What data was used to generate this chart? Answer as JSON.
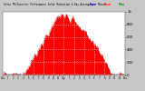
{
  "title": "Solar PV/Inverter Performance Solar Radiation & Day Average per Minute",
  "bg_color": "#c8c8c8",
  "plot_bg_color": "#ffffff",
  "fill_color": "#ff0000",
  "line_color": "#cc0000",
  "legend_colors": [
    "#0000cc",
    "#ff2222",
    "#008800"
  ],
  "legend_labels": [
    "Curr Prod",
    "Day Avg",
    "Max"
  ],
  "ylim": [
    0,
    1000
  ],
  "grid_color": "#ffffff",
  "tick_color": "#000000",
  "title_color": "#000000",
  "right_axis_labels": [
    "1k",
    "800",
    "600",
    "400",
    "200",
    "0"
  ],
  "right_axis_values": [
    1000,
    800,
    600,
    400,
    200,
    0
  ],
  "n_points": 400,
  "n_vgrid": 12,
  "h_grid_vals": [
    200,
    400,
    600,
    800,
    1000
  ],
  "time_labels": [
    "12a",
    "1",
    "2",
    "3",
    "4",
    "5",
    "6",
    "7",
    "8",
    "9",
    "10",
    "11",
    "12p",
    "1",
    "2",
    "3",
    "4",
    "5",
    "6",
    "7",
    "8",
    "9",
    "10",
    "11",
    "12a"
  ],
  "seed": 17
}
